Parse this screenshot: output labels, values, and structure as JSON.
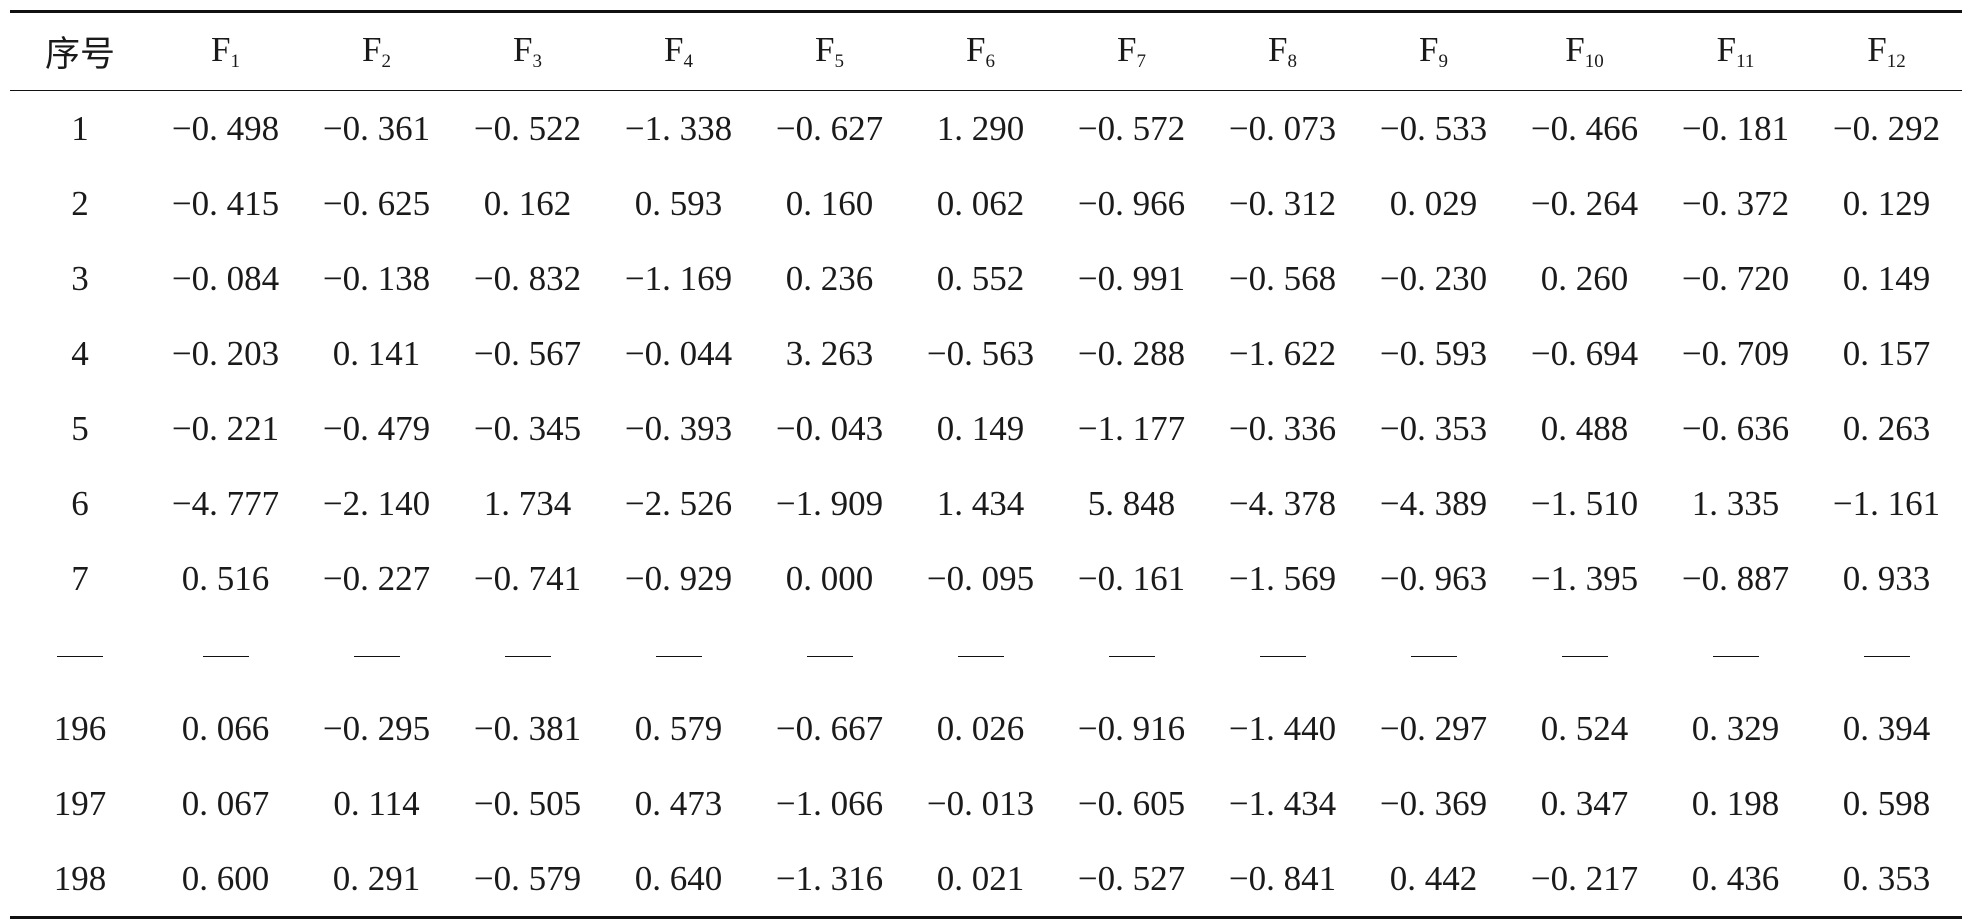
{
  "table": {
    "header": [
      {
        "base": "序号",
        "sub": ""
      },
      {
        "base": "F",
        "sub": "1"
      },
      {
        "base": "F",
        "sub": "2"
      },
      {
        "base": "F",
        "sub": "3"
      },
      {
        "base": "F",
        "sub": "4"
      },
      {
        "base": "F",
        "sub": "5"
      },
      {
        "base": "F",
        "sub": "6"
      },
      {
        "base": "F",
        "sub": "7"
      },
      {
        "base": "F",
        "sub": "8"
      },
      {
        "base": "F",
        "sub": "9"
      },
      {
        "base": "F",
        "sub": "10"
      },
      {
        "base": "F",
        "sub": "11"
      },
      {
        "base": "F",
        "sub": "12"
      }
    ],
    "rows": [
      [
        "1",
        "−0. 498",
        "−0. 361",
        "−0. 522",
        "−1. 338",
        "−0. 627",
        "1. 290",
        "−0. 572",
        "−0. 073",
        "−0. 533",
        "−0. 466",
        "−0. 181",
        "−0. 292"
      ],
      [
        "2",
        "−0. 415",
        "−0. 625",
        "0. 162",
        "0. 593",
        "0. 160",
        "0. 062",
        "−0. 966",
        "−0. 312",
        "0. 029",
        "−0. 264",
        "−0. 372",
        "0. 129"
      ],
      [
        "3",
        "−0. 084",
        "−0. 138",
        "−0. 832",
        "−1. 169",
        "0. 236",
        "0. 552",
        "−0. 991",
        "−0. 568",
        "−0. 230",
        "0. 260",
        "−0. 720",
        "0. 149"
      ],
      [
        "4",
        "−0. 203",
        "0. 141",
        "−0. 567",
        "−0. 044",
        "3. 263",
        "−0. 563",
        "−0. 288",
        "−1. 622",
        "−0. 593",
        "−0. 694",
        "−0. 709",
        "0. 157"
      ],
      [
        "5",
        "−0. 221",
        "−0. 479",
        "−0. 345",
        "−0. 393",
        "−0. 043",
        "0. 149",
        "−1. 177",
        "−0. 336",
        "−0. 353",
        "0. 488",
        "−0. 636",
        "0. 263"
      ],
      [
        "6",
        "−4. 777",
        "−2. 140",
        "1. 734",
        "−2. 526",
        "−1. 909",
        "1. 434",
        "5. 848",
        "−4. 378",
        "−4. 389",
        "−1. 510",
        "1. 335",
        "−1. 161"
      ],
      [
        "7",
        "0. 516",
        "−0. 227",
        "−0. 741",
        "−0. 929",
        "0. 000",
        "−0. 095",
        "−0. 161",
        "−1. 569",
        "−0. 963",
        "−1. 395",
        "−0. 887",
        "0. 933"
      ],
      [
        "—",
        "—",
        "—",
        "—",
        "—",
        "—",
        "—",
        "—",
        "—",
        "—",
        "—",
        "—",
        "—"
      ],
      [
        "196",
        "0. 066",
        "−0. 295",
        "−0. 381",
        "0. 579",
        "−0. 667",
        "0. 026",
        "−0. 916",
        "−1. 440",
        "−0. 297",
        "0. 524",
        "0. 329",
        "0. 394"
      ],
      [
        "197",
        "0. 067",
        "0. 114",
        "−0. 505",
        "0. 473",
        "−1. 066",
        "−0. 013",
        "−0. 605",
        "−1. 434",
        "−0. 369",
        "0. 347",
        "0. 198",
        "0. 598"
      ],
      [
        "198",
        "0. 600",
        "0. 291",
        "−0. 579",
        "0. 640",
        "−1. 316",
        "0. 021",
        "−0. 527",
        "−0. 841",
        "0. 442",
        "−0. 217",
        "0. 436",
        "0. 353"
      ]
    ]
  }
}
